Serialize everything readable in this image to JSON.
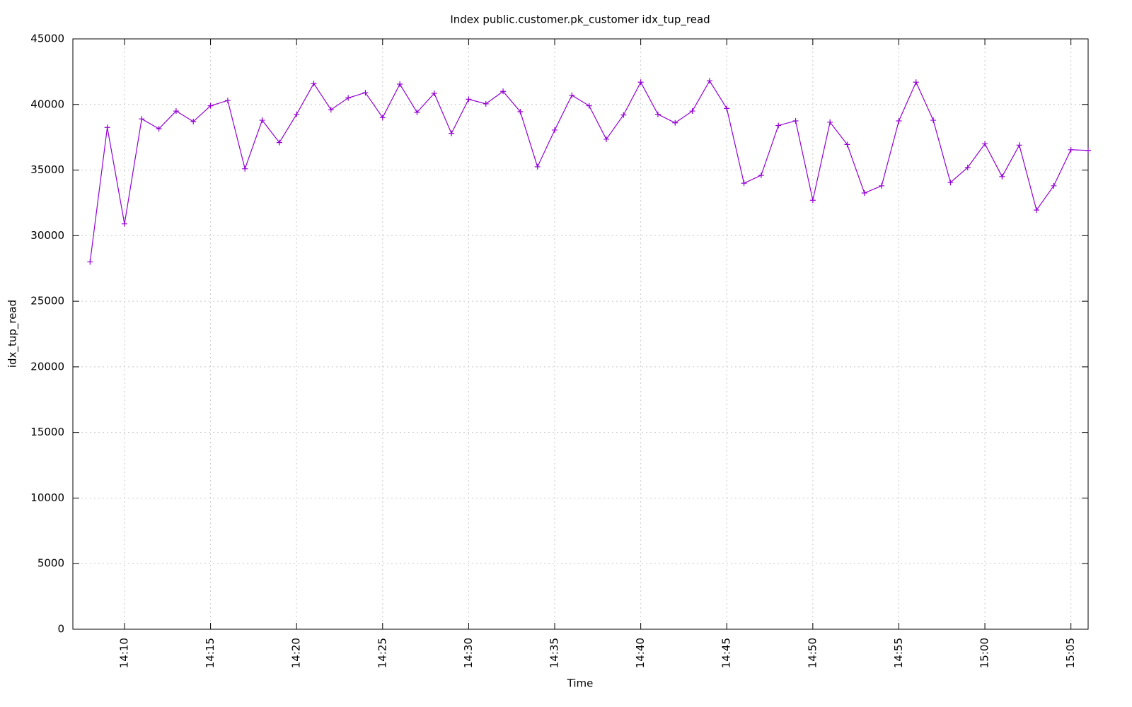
{
  "chart_data": {
    "type": "line",
    "title": "Index public.customer.pk_customer idx_tup_read",
    "x_label": "Time",
    "y_label": "idx_tup_read",
    "color": "#9400d3",
    "grid": true,
    "marker": "+",
    "x": [
      "14:08",
      "14:09",
      "14:10",
      "14:11",
      "14:12",
      "14:13",
      "14:14",
      "14:15",
      "14:16",
      "14:17",
      "14:18",
      "14:19",
      "14:20",
      "14:21",
      "14:22",
      "14:23",
      "14:24",
      "14:25",
      "14:26",
      "14:27",
      "14:28",
      "14:29",
      "14:30",
      "14:31",
      "14:32",
      "14:33",
      "14:34",
      "14:35",
      "14:36",
      "14:37",
      "14:38",
      "14:39",
      "14:40",
      "14:41",
      "14:42",
      "14:43",
      "14:44",
      "14:45",
      "14:46",
      "14:47",
      "14:48",
      "14:49",
      "14:50",
      "14:51",
      "14:52",
      "14:53",
      "14:54",
      "14:55",
      "14:56",
      "14:57",
      "14:58",
      "14:59",
      "15:00",
      "15:01",
      "15:02",
      "15:03",
      "15:04",
      "15:05",
      "15:06"
    ],
    "values": [
      28000,
      38250,
      30900,
      38900,
      38150,
      39500,
      38700,
      39900,
      40300,
      35100,
      38800,
      37100,
      39250,
      41600,
      39600,
      40500,
      40900,
      39000,
      41550,
      39400,
      40850,
      37800,
      40400,
      40050,
      41000,
      39450,
      35250,
      38050,
      40700,
      39900,
      37350,
      39200,
      41700,
      39250,
      38600,
      39500,
      41800,
      39700,
      34000,
      34600,
      38400,
      38750,
      32700,
      38650,
      36950,
      33250,
      33800,
      38750,
      41700,
      38800,
      34050,
      35200,
      37000,
      34500,
      36900,
      31950,
      33800,
      36550,
      36500
    ],
    "xlim": [
      "14:07",
      "15:06"
    ],
    "xticks": [
      "14:10",
      "14:15",
      "14:20",
      "14:25",
      "14:30",
      "14:35",
      "14:40",
      "14:45",
      "14:50",
      "14:55",
      "15:00",
      "15:05"
    ],
    "ylim": [
      0,
      45000
    ],
    "yticks": [
      0,
      5000,
      10000,
      15000,
      20000,
      25000,
      30000,
      35000,
      40000,
      45000
    ]
  }
}
